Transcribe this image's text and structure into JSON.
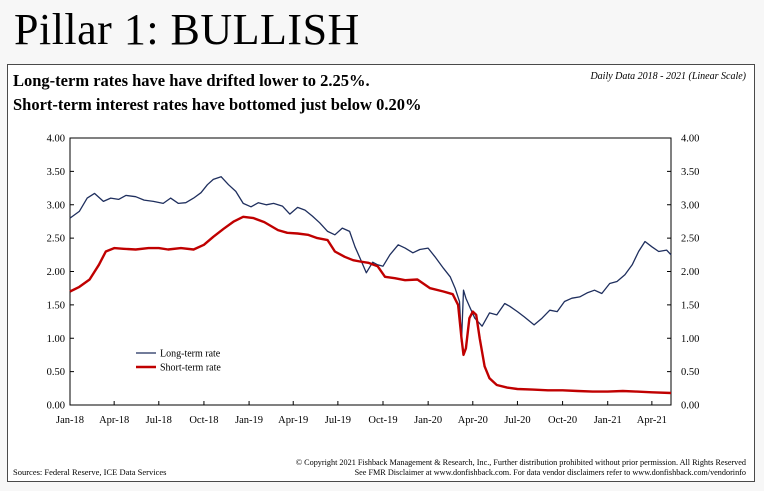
{
  "slide": {
    "title": "Pillar 1: BULLISH"
  },
  "panel": {
    "headline_1": "Long-term rates have have drifted lower to 2.25%.",
    "headline_2": "Short-term interest rates have bottomed just below 0.20%",
    "scale_note": "Daily Data 2018 - 2021 (Linear Scale)",
    "source": "Sources: Federal Reserve, ICE Data Services",
    "copyright": "© Copyright 2021 Fishback Management & Research, Inc., Further distribution prohibited without prior permission. All Rights Reserved",
    "disclaimer": "See FMR Disclaimer at www.donfishback.com. For data vendor disclaimers refer to www.donfishback.com/vendorinfo"
  },
  "colors": {
    "long_term": "#1f2f5e",
    "short_term": "#c00000"
  },
  "chart_data": {
    "type": "line",
    "x_ticks": [
      "Jan-18",
      "Apr-18",
      "Jul-18",
      "Oct-18",
      "Jan-19",
      "Apr-19",
      "Jul-19",
      "Oct-19",
      "Jan-20",
      "Apr-20",
      "Jul-20",
      "Oct-20",
      "Jan-21",
      "Apr-21"
    ],
    "y_ticks": [
      "0.00",
      "0.50",
      "1.00",
      "1.50",
      "2.00",
      "2.50",
      "3.00",
      "3.50",
      "4.00"
    ],
    "ylim": [
      0,
      4
    ],
    "xlim": [
      "2018-01-01",
      "2021-05-10"
    ],
    "legend_position": "lower-left",
    "series": [
      {
        "name": "Long-term rate",
        "x": [
          "2018-01-01",
          "2018-01-20",
          "2018-02-05",
          "2018-02-20",
          "2018-03-10",
          "2018-03-25",
          "2018-04-10",
          "2018-04-25",
          "2018-05-15",
          "2018-06-01",
          "2018-06-20",
          "2018-07-10",
          "2018-07-25",
          "2018-08-10",
          "2018-08-25",
          "2018-09-10",
          "2018-09-25",
          "2018-10-08",
          "2018-10-20",
          "2018-11-05",
          "2018-11-20",
          "2018-12-05",
          "2018-12-20",
          "2019-01-05",
          "2019-01-20",
          "2019-02-05",
          "2019-02-20",
          "2019-03-10",
          "2019-03-25",
          "2019-04-10",
          "2019-04-25",
          "2019-05-10",
          "2019-05-25",
          "2019-06-10",
          "2019-06-25",
          "2019-07-10",
          "2019-07-25",
          "2019-08-05",
          "2019-08-15",
          "2019-08-28",
          "2019-09-10",
          "2019-09-20",
          "2019-10-01",
          "2019-10-15",
          "2019-11-01",
          "2019-11-15",
          "2019-12-01",
          "2019-12-15",
          "2020-01-01",
          "2020-01-15",
          "2020-02-01",
          "2020-02-15",
          "2020-02-25",
          "2020-03-05",
          "2020-03-09",
          "2020-03-13",
          "2020-03-18",
          "2020-03-25",
          "2020-04-05",
          "2020-04-20",
          "2020-05-05",
          "2020-05-20",
          "2020-06-05",
          "2020-06-15",
          "2020-07-01",
          "2020-07-15",
          "2020-08-04",
          "2020-08-20",
          "2020-09-05",
          "2020-09-20",
          "2020-10-05",
          "2020-10-20",
          "2020-11-05",
          "2020-11-20",
          "2020-12-05",
          "2020-12-20",
          "2021-01-05",
          "2021-01-20",
          "2021-02-05",
          "2021-02-20",
          "2021-03-05",
          "2021-03-18",
          "2021-04-01",
          "2021-04-15",
          "2021-05-01",
          "2021-05-10"
        ],
        "values": [
          2.8,
          2.9,
          3.1,
          3.17,
          3.05,
          3.1,
          3.08,
          3.14,
          3.12,
          3.07,
          3.05,
          3.02,
          3.1,
          3.02,
          3.03,
          3.1,
          3.18,
          3.3,
          3.38,
          3.42,
          3.3,
          3.2,
          3.02,
          2.97,
          3.03,
          3.0,
          3.02,
          2.98,
          2.86,
          2.96,
          2.92,
          2.83,
          2.73,
          2.6,
          2.55,
          2.65,
          2.6,
          2.37,
          2.2,
          1.98,
          2.14,
          2.1,
          2.08,
          2.25,
          2.4,
          2.35,
          2.28,
          2.33,
          2.35,
          2.22,
          2.05,
          1.92,
          1.75,
          1.55,
          0.95,
          1.72,
          1.6,
          1.48,
          1.3,
          1.18,
          1.38,
          1.35,
          1.52,
          1.48,
          1.4,
          1.32,
          1.2,
          1.3,
          1.42,
          1.4,
          1.55,
          1.6,
          1.62,
          1.68,
          1.72,
          1.67,
          1.82,
          1.85,
          1.95,
          2.1,
          2.3,
          2.45,
          2.37,
          2.3,
          2.32,
          2.25
        ]
      },
      {
        "name": "Short-term rate",
        "x": [
          "2018-01-01",
          "2018-01-20",
          "2018-02-10",
          "2018-03-01",
          "2018-03-15",
          "2018-04-01",
          "2018-04-20",
          "2018-05-15",
          "2018-06-10",
          "2018-07-01",
          "2018-07-20",
          "2018-08-15",
          "2018-09-10",
          "2018-10-01",
          "2018-10-20",
          "2018-11-10",
          "2018-12-01",
          "2018-12-20",
          "2019-01-10",
          "2019-02-01",
          "2019-03-01",
          "2019-03-20",
          "2019-04-10",
          "2019-05-01",
          "2019-05-20",
          "2019-06-10",
          "2019-06-25",
          "2019-07-15",
          "2019-08-01",
          "2019-08-15",
          "2019-09-01",
          "2019-09-20",
          "2019-10-05",
          "2019-10-25",
          "2019-11-15",
          "2019-12-10",
          "2020-01-05",
          "2020-02-01",
          "2020-02-20",
          "2020-03-02",
          "2020-03-09",
          "2020-03-13",
          "2020-03-18",
          "2020-03-25",
          "2020-04-01",
          "2020-04-08",
          "2020-04-15",
          "2020-04-25",
          "2020-05-05",
          "2020-05-20",
          "2020-06-10",
          "2020-07-01",
          "2020-08-01",
          "2020-09-01",
          "2020-10-01",
          "2020-11-01",
          "2020-12-01",
          "2021-01-01",
          "2021-02-01",
          "2021-03-01",
          "2021-04-01",
          "2021-05-10"
        ],
        "values": [
          1.7,
          1.77,
          1.88,
          2.1,
          2.3,
          2.35,
          2.34,
          2.33,
          2.35,
          2.35,
          2.33,
          2.35,
          2.33,
          2.4,
          2.52,
          2.64,
          2.75,
          2.82,
          2.8,
          2.74,
          2.62,
          2.58,
          2.57,
          2.55,
          2.5,
          2.47,
          2.3,
          2.22,
          2.17,
          2.15,
          2.13,
          2.08,
          1.92,
          1.9,
          1.87,
          1.88,
          1.75,
          1.7,
          1.66,
          1.5,
          1.0,
          0.75,
          0.85,
          1.3,
          1.4,
          1.35,
          1.0,
          0.58,
          0.4,
          0.3,
          0.26,
          0.24,
          0.23,
          0.22,
          0.22,
          0.21,
          0.2,
          0.2,
          0.21,
          0.2,
          0.19,
          0.18
        ]
      }
    ]
  }
}
